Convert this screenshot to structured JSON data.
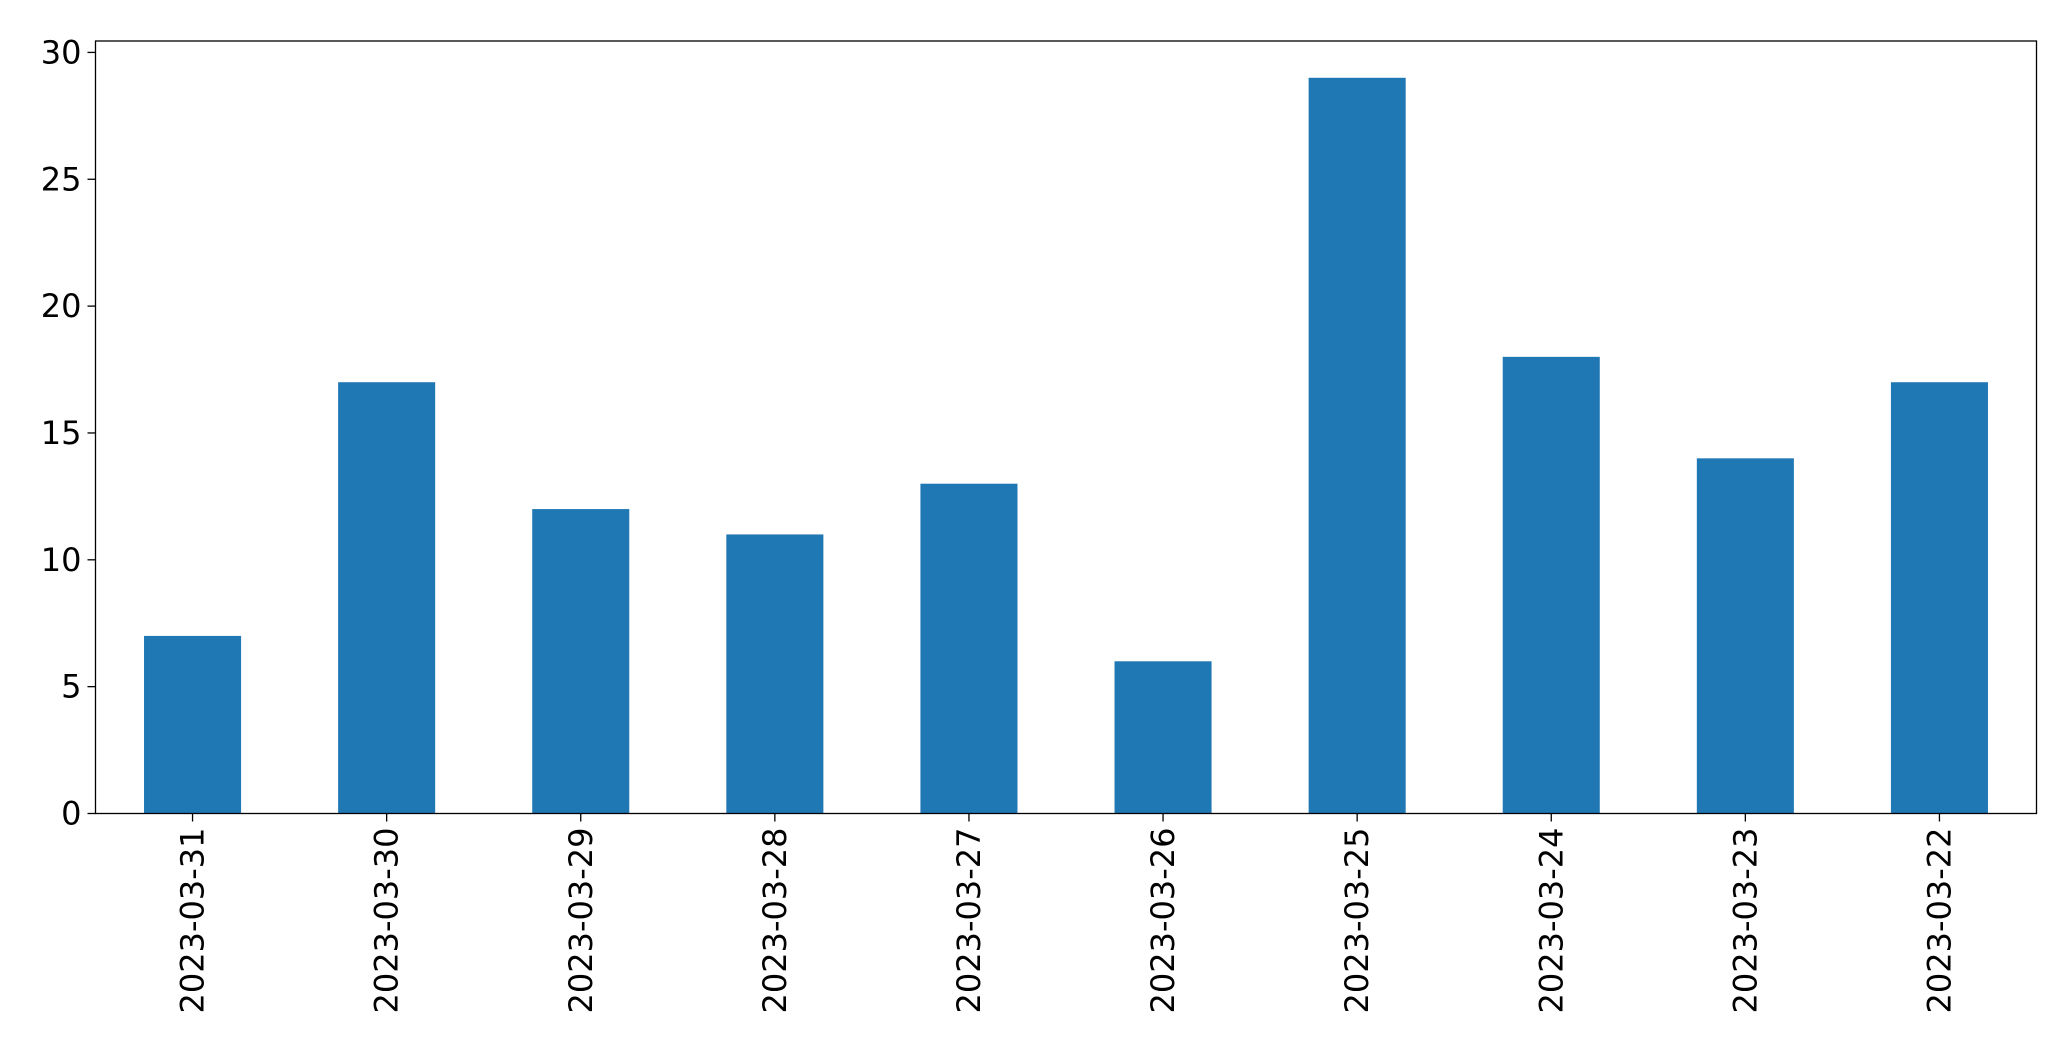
{
  "chart_data": {
    "type": "bar",
    "categories": [
      "2023-03-31",
      "2023-03-30",
      "2023-03-29",
      "2023-03-28",
      "2023-03-27",
      "2023-03-26",
      "2023-03-25",
      "2023-03-24",
      "2023-03-23",
      "2023-03-22"
    ],
    "values": [
      7,
      17,
      12,
      11,
      13,
      6,
      29,
      18,
      14,
      17
    ],
    "color": "#1f77b4",
    "ylim": [
      0,
      30.45
    ],
    "yticks": [
      0,
      5,
      10,
      15,
      20,
      25,
      30
    ],
    "grid": false
  }
}
